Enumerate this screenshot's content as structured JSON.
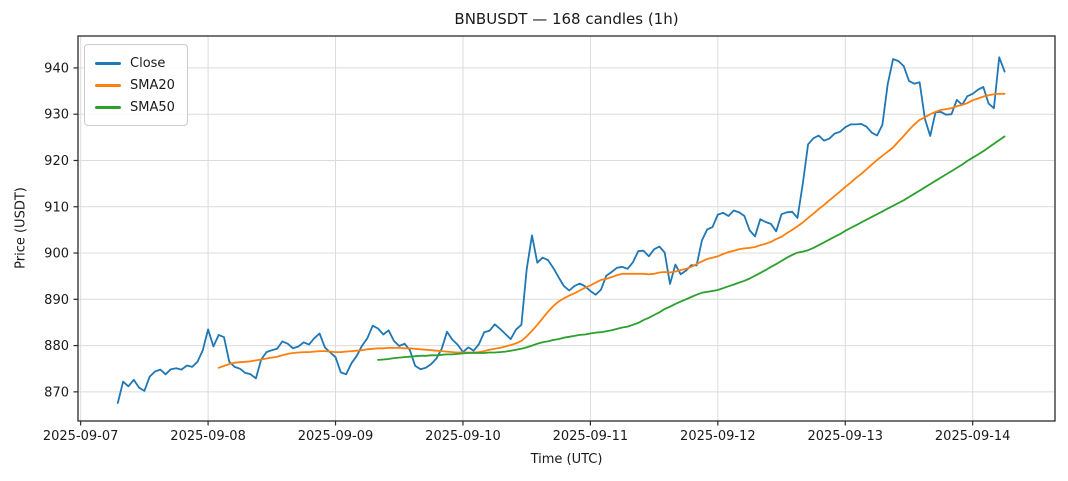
{
  "chart_data": {
    "type": "line",
    "title": "BNBUSDT — 168 candles (1h)",
    "xlabel": "Time (UTC)",
    "ylabel": "Price (USDT)",
    "grid": true,
    "legend_position": "upper-left",
    "y_ticks": [
      870,
      880,
      890,
      900,
      910,
      920,
      930,
      940
    ],
    "ylim": [
      863.7,
      946.9
    ],
    "xlim": [
      -7.5,
      176.5
    ],
    "x_tick_index": [
      -7,
      17,
      41,
      65,
      89,
      113,
      137,
      161
    ],
    "x_tick_labels": [
      "2025-09-07",
      "2025-09-08",
      "2025-09-09",
      "2025-09-10",
      "2025-09-11",
      "2025-09-12",
      "2025-09-13",
      "2025-09-14"
    ],
    "colors": {
      "grid": "#dcdcdc",
      "spine": "#2b2b2b",
      "tick": "#2b2b2b",
      "background": "#ffffff"
    },
    "series": [
      {
        "name": "Close",
        "color": "#1f77b4",
        "start_index": 0,
        "values": [
          867.6,
          872.2,
          871.2,
          872.6,
          870.9,
          870.2,
          873.3,
          874.4,
          874.8,
          873.8,
          874.9,
          875.1,
          874.8,
          875.7,
          875.4,
          876.5,
          879.0,
          883.5,
          879.8,
          882.3,
          881.8,
          876.5,
          875.4,
          875.0,
          874.1,
          873.8,
          872.9,
          877.0,
          878.6,
          879.0,
          879.3,
          880.9,
          880.4,
          879.4,
          879.8,
          880.7,
          880.2,
          881.6,
          882.6,
          879.6,
          878.5,
          877.5,
          874.2,
          873.8,
          876.2,
          877.8,
          880.0,
          881.6,
          884.3,
          883.7,
          882.4,
          883.3,
          881.0,
          879.9,
          880.4,
          879.0,
          875.6,
          874.9,
          875.2,
          876.0,
          877.2,
          879.3,
          883.0,
          881.3,
          880.2,
          878.6,
          879.6,
          878.9,
          880.3,
          882.9,
          883.2,
          884.6,
          883.6,
          882.5,
          881.4,
          883.5,
          884.5,
          896.5,
          903.8,
          897.9,
          899.0,
          898.5,
          896.8,
          894.8,
          892.9,
          891.9,
          892.9,
          893.4,
          892.8,
          891.8,
          891.0,
          892.1,
          895.1,
          895.9,
          896.8,
          897.0,
          896.6,
          898.0,
          900.4,
          900.5,
          899.3,
          900.8,
          901.4,
          900.1,
          893.3,
          897.5,
          895.4,
          896.2,
          897.4,
          897.3,
          902.7,
          905.1,
          905.6,
          908.3,
          908.7,
          908.0,
          909.2,
          908.8,
          908.0,
          904.9,
          903.6,
          907.3,
          906.7,
          906.3,
          904.7,
          908.4,
          908.8,
          908.9,
          907.6,
          915.0,
          923.5,
          924.8,
          925.4,
          924.3,
          924.7,
          925.8,
          926.2,
          927.2,
          927.8,
          927.8,
          927.9,
          927.3,
          926.0,
          925.4,
          927.7,
          936.5,
          941.9,
          941.5,
          940.4,
          937.2,
          936.6,
          936.9,
          929.0,
          925.3,
          930.4,
          930.5,
          929.9,
          930.0,
          933.1,
          932.0,
          933.9,
          934.4,
          935.3,
          935.9,
          932.3,
          931.3,
          942.3,
          939.2
        ]
      },
      {
        "name": "SMA20",
        "color": "#ff7f0e",
        "start_index": 19,
        "values": [
          875.2,
          875.6,
          876.0,
          876.3,
          876.4,
          876.5,
          876.6,
          876.8,
          877.0,
          877.2,
          877.4,
          877.6,
          877.9,
          878.2,
          878.4,
          878.5,
          878.6,
          878.6,
          878.7,
          878.8,
          878.8,
          878.7,
          878.6,
          878.6,
          878.7,
          878.8,
          878.9,
          879.0,
          879.2,
          879.3,
          879.4,
          879.4,
          879.5,
          879.5,
          879.5,
          879.4,
          879.4,
          879.3,
          879.2,
          879.1,
          879.0,
          878.9,
          878.8,
          878.7,
          878.6,
          878.5,
          878.5,
          878.5,
          878.5,
          878.6,
          878.8,
          879.1,
          879.3,
          879.5,
          879.8,
          880.1,
          880.5,
          881.0,
          882.0,
          883.2,
          884.5,
          885.9,
          887.3,
          888.5,
          889.5,
          890.2,
          890.8,
          891.3,
          891.9,
          892.5,
          893.0,
          893.6,
          894.2,
          894.4,
          894.8,
          895.2,
          895.5,
          895.5,
          895.5,
          895.5,
          895.5,
          895.4,
          895.5,
          895.8,
          895.9,
          895.8,
          896.0,
          896.3,
          896.6,
          897.0,
          897.6,
          898.2,
          898.7,
          899.0,
          899.3,
          899.8,
          900.2,
          900.5,
          900.8,
          901.0,
          901.1,
          901.3,
          901.7,
          902.0,
          902.4,
          903.0,
          903.5,
          904.3,
          905.0,
          905.8,
          906.6,
          907.6,
          908.5,
          909.5,
          910.4,
          911.4,
          912.3,
          913.3,
          914.3,
          915.2,
          916.2,
          917.1,
          918.1,
          919.1,
          920.1,
          921.0,
          921.9,
          922.8,
          924.1,
          925.3,
          926.6,
          927.8,
          928.8,
          929.3,
          930.0,
          930.5,
          930.9,
          931.1,
          931.3,
          931.7,
          932.0,
          932.4,
          933.0,
          933.4,
          933.8,
          934.1,
          934.3,
          934.4,
          934.4
        ]
      },
      {
        "name": "SMA50",
        "color": "#2ca02c",
        "start_index": 49,
        "values": [
          876.9,
          877.0,
          877.1,
          877.3,
          877.4,
          877.5,
          877.6,
          877.7,
          877.8,
          877.8,
          877.9,
          877.9,
          878.0,
          878.1,
          878.1,
          878.2,
          878.3,
          878.4,
          878.4,
          878.4,
          878.4,
          878.5,
          878.5,
          878.6,
          878.7,
          878.9,
          879.1,
          879.3,
          879.6,
          880.0,
          880.4,
          880.7,
          880.9,
          881.2,
          881.4,
          881.7,
          881.9,
          882.1,
          882.3,
          882.4,
          882.6,
          882.8,
          882.9,
          883.1,
          883.3,
          883.6,
          883.9,
          884.1,
          884.5,
          884.9,
          885.5,
          886.0,
          886.6,
          887.2,
          887.9,
          888.4,
          889.0,
          889.5,
          890.0,
          890.5,
          891.0,
          891.4,
          891.6,
          891.8,
          892.0,
          892.4,
          892.8,
          893.2,
          893.6,
          894.0,
          894.5,
          895.1,
          895.7,
          896.3,
          897.0,
          897.6,
          898.3,
          899.0,
          899.6,
          900.1,
          900.3,
          900.6,
          901.1,
          901.7,
          902.3,
          902.9,
          903.5,
          904.1,
          904.8,
          905.4,
          906.0,
          906.6,
          907.2,
          907.8,
          908.4,
          909.0,
          909.6,
          910.2,
          910.8,
          911.4,
          912.1,
          912.8,
          913.5,
          914.2,
          914.9,
          915.6,
          916.3,
          917.0,
          917.7,
          918.4,
          919.1,
          919.9,
          920.6,
          921.3,
          922.0,
          922.8,
          923.6,
          924.4,
          925.2
        ]
      }
    ]
  }
}
